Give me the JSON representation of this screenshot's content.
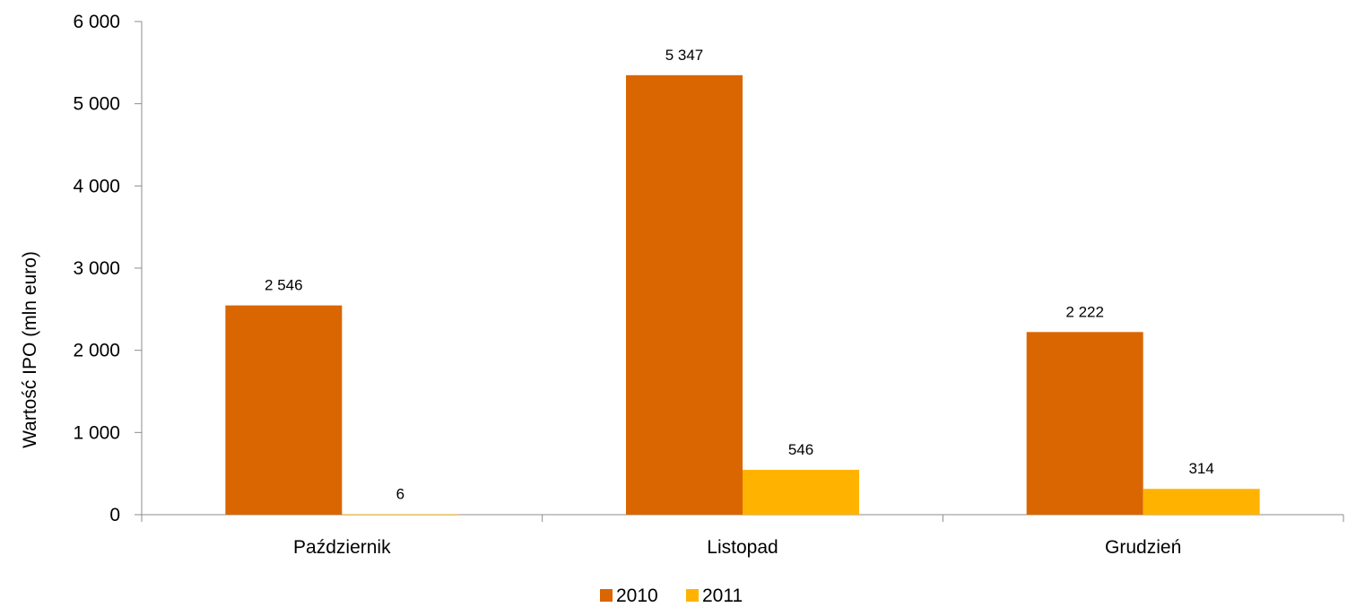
{
  "chart_data": {
    "type": "bar",
    "title": "",
    "xlabel": "",
    "ylabel": "Wartość IPO (mln euro)",
    "categories": [
      "Październik",
      "Listopad",
      "Grudzień"
    ],
    "series": [
      {
        "name": "2010",
        "values": [
          2546,
          5347,
          2222
        ],
        "labels": [
          "2 546",
          "5 347",
          "2 222"
        ],
        "color": "#D96600"
      },
      {
        "name": "2011",
        "values": [
          6,
          546,
          314
        ],
        "labels": [
          "6",
          "546",
          "314"
        ],
        "color": "#FFB300"
      }
    ],
    "ylim": [
      0,
      6000
    ],
    "yticks": [
      0,
      1000,
      2000,
      3000,
      4000,
      5000,
      6000
    ],
    "ytick_labels": [
      "0",
      "1 000",
      "2 000",
      "3 000",
      "4 000",
      "5 000",
      "6 000"
    ],
    "grid": false,
    "legend": "bottom-center"
  }
}
